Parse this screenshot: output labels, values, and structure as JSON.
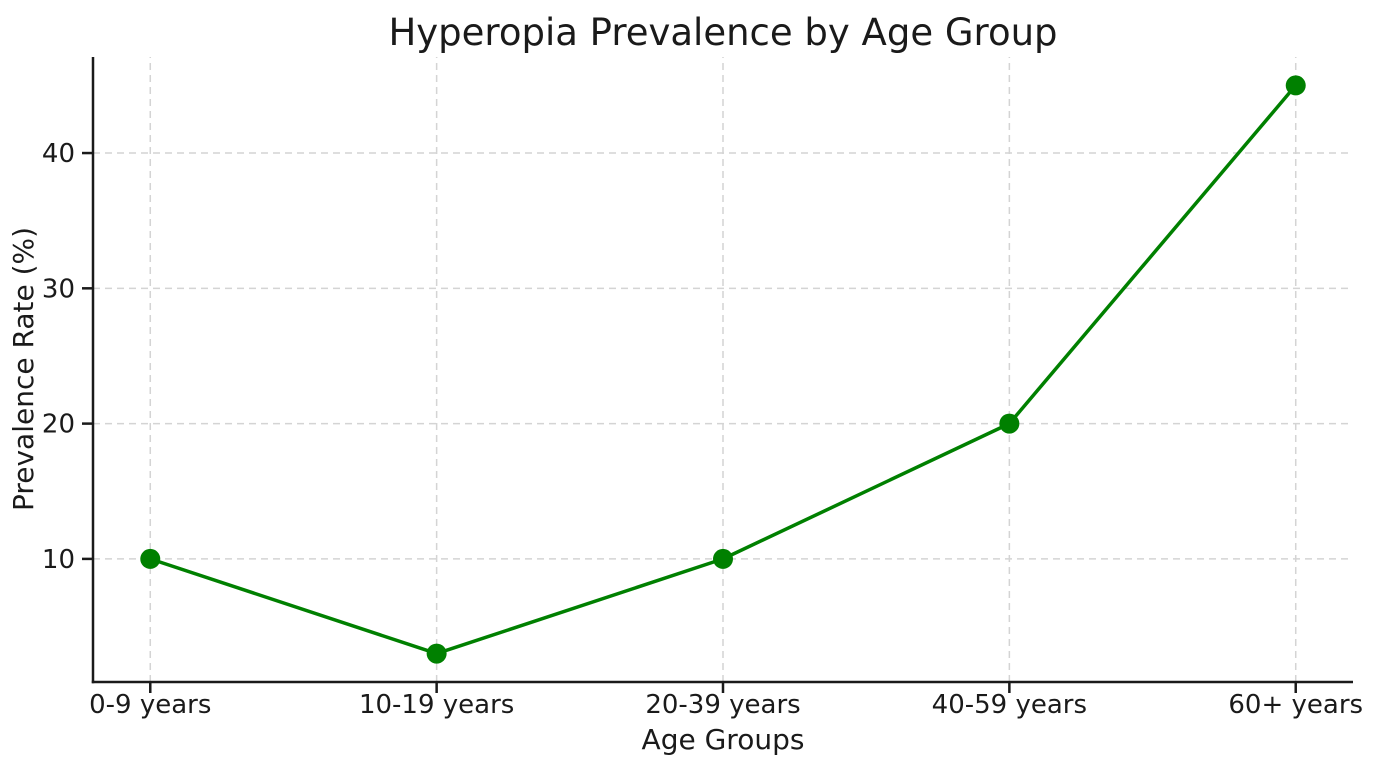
{
  "chart_data": {
    "type": "line",
    "title": "Hyperopia Prevalence by Age Group",
    "xlabel": "Age Groups",
    "ylabel": "Prevalence Rate (%)",
    "categories": [
      "0-9 years",
      "10-19 years",
      "20-39 years",
      "40-59 years",
      "60+ years"
    ],
    "series": [
      {
        "name": "Hyperopia prevalence",
        "values": [
          10,
          3,
          10,
          20,
          45
        ]
      }
    ],
    "yticks": [
      10,
      20,
      30,
      40
    ],
    "ylim": [
      0.9,
      47.1
    ],
    "xlim": [
      -0.2,
      4.2
    ],
    "grid": "dashed, both axes",
    "legend": "none",
    "marker": "circle",
    "colors": {
      "line": "#008000",
      "marker": "#008000",
      "grid": "#d4d4d4",
      "spine": "#1a1a1a",
      "text": "#1a1a1a",
      "background": "#ffffff"
    }
  }
}
